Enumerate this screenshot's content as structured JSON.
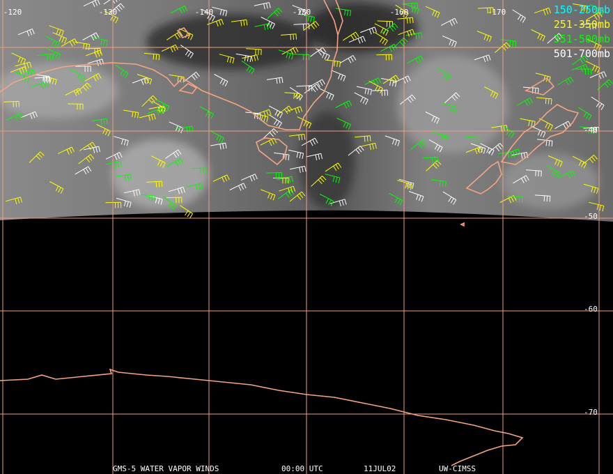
{
  "map": {
    "longitude_labels": [
      "-120",
      "-130",
      "-140",
      "-150",
      "-160",
      "-170"
    ],
    "latitude_labels": [
      "-40",
      "-50",
      "-60",
      "-70"
    ],
    "legend": [
      {
        "label": "150-250mb",
        "color": "#00ffff"
      },
      {
        "label": "251-350mb",
        "color": "#ffff00"
      },
      {
        "label": "351-500mb",
        "color": "#00ff00"
      },
      {
        "label": "501-700mb",
        "color": "#ffffff"
      }
    ],
    "footer": [
      "GMS-5 WATER VAPOR WINDS",
      "00:00 UTC",
      "11JUL02",
      "UW-CIMSS"
    ]
  }
}
